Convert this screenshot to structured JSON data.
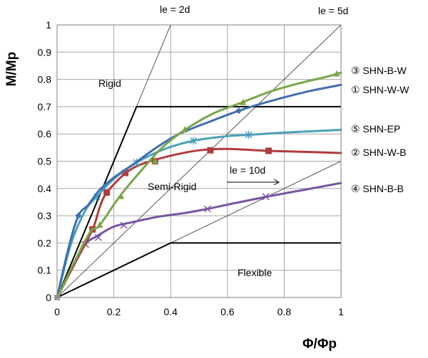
{
  "chart_data": {
    "type": "line",
    "xlabel": "Φ/Φp",
    "ylabel": "M/Mp",
    "xlim": [
      0,
      1
    ],
    "ylim": [
      0,
      1
    ],
    "x_ticks": [
      "0",
      "0.2",
      "0.4",
      "0.6",
      "0.8",
      "1"
    ],
    "y_ticks": [
      "0",
      "0.1",
      "0.2",
      "0.3",
      "0.4",
      "0.5",
      "0.6",
      "0.7",
      "0.8",
      "0.9",
      "1"
    ],
    "grid": true,
    "legend_placement": "right",
    "annotations": {
      "le_2d": "le = 2d",
      "le_5d": "le = 5d",
      "le_10d": "le = 10d",
      "rigid": "Rigid",
      "semi_rigid": "Semi-Rigid",
      "flexible": "Flexible"
    },
    "reference_lines": {
      "le_2d": {
        "x": [
          0,
          0.4
        ],
        "y": [
          0,
          1
        ]
      },
      "le_5d": {
        "x": [
          0,
          1
        ],
        "y": [
          0,
          1
        ]
      },
      "le_10d": {
        "x": [
          0,
          1
        ],
        "y": [
          0,
          0.5
        ]
      },
      "rigid_boundary": {
        "x": [
          0,
          0.28,
          1
        ],
        "y": [
          0,
          0.7,
          0.7
        ]
      },
      "flexible_boundary": {
        "x": [
          0,
          0.4,
          1
        ],
        "y": [
          0,
          0.2,
          0.2
        ]
      }
    },
    "series": [
      {
        "name": "③ SHN-B-W",
        "color": "#77a64a",
        "marker": "triangle",
        "curve": [
          [
            0,
            0
          ],
          [
            0.08,
            0.17
          ],
          [
            0.12,
            0.245
          ],
          [
            0.15,
            0.265
          ],
          [
            0.22,
            0.37
          ],
          [
            0.3,
            0.47
          ],
          [
            0.37,
            0.55
          ],
          [
            0.45,
            0.615
          ],
          [
            0.55,
            0.675
          ],
          [
            0.65,
            0.715
          ],
          [
            0.75,
            0.755
          ],
          [
            0.85,
            0.785
          ],
          [
            0.95,
            0.81
          ],
          [
            1,
            0.825
          ]
        ],
        "markers": [
          [
            0.15,
            0.265
          ],
          [
            0.225,
            0.37
          ],
          [
            0.345,
            0.5
          ],
          [
            0.45,
            0.615
          ],
          [
            0.655,
            0.715
          ],
          [
            0.985,
            0.82
          ]
        ]
      },
      {
        "name": "① SHN-W-W",
        "color": "#3f6fae",
        "marker": "diamond",
        "curve": [
          [
            0,
            0
          ],
          [
            0.04,
            0.18
          ],
          [
            0.075,
            0.3
          ],
          [
            0.11,
            0.34
          ],
          [
            0.15,
            0.395
          ],
          [
            0.2,
            0.44
          ],
          [
            0.27,
            0.49
          ],
          [
            0.35,
            0.55
          ],
          [
            0.43,
            0.6
          ],
          [
            0.55,
            0.65
          ],
          [
            0.64,
            0.685
          ],
          [
            0.75,
            0.72
          ],
          [
            0.88,
            0.755
          ],
          [
            1,
            0.78
          ]
        ],
        "markers": [
          [
            0.075,
            0.3
          ],
          [
            0.64,
            0.685
          ]
        ]
      },
      {
        "name": "⑤ SHN-EP",
        "color": "#4aa0bb",
        "marker": "asterisk",
        "curve": [
          [
            0,
            0
          ],
          [
            0.05,
            0.2
          ],
          [
            0.1,
            0.32
          ],
          [
            0.14,
            0.37
          ],
          [
            0.2,
            0.435
          ],
          [
            0.28,
            0.495
          ],
          [
            0.38,
            0.545
          ],
          [
            0.48,
            0.575
          ],
          [
            0.6,
            0.592
          ],
          [
            0.68,
            0.597
          ],
          [
            0.8,
            0.605
          ],
          [
            0.9,
            0.61
          ],
          [
            1,
            0.615
          ]
        ],
        "markers": [
          [
            0.14,
            0.37
          ],
          [
            0.28,
            0.495
          ],
          [
            0.48,
            0.575
          ],
          [
            0.675,
            0.597
          ]
        ]
      },
      {
        "name": "② SHN-W-B",
        "color": "#b23b3b",
        "marker": "square",
        "curve": [
          [
            0,
            0
          ],
          [
            0.06,
            0.12
          ],
          [
            0.125,
            0.25
          ],
          [
            0.15,
            0.33
          ],
          [
            0.175,
            0.385
          ],
          [
            0.24,
            0.455
          ],
          [
            0.3,
            0.49
          ],
          [
            0.4,
            0.52
          ],
          [
            0.5,
            0.54
          ],
          [
            0.6,
            0.545
          ],
          [
            0.74,
            0.538
          ],
          [
            0.85,
            0.535
          ],
          [
            1,
            0.53
          ]
        ],
        "markers": [
          [
            0.125,
            0.25
          ],
          [
            0.175,
            0.385
          ],
          [
            0.24,
            0.457
          ],
          [
            0.345,
            0.5
          ],
          [
            0.54,
            0.54
          ],
          [
            0.745,
            0.538
          ]
        ]
      },
      {
        "name": "④ SHN-B-B",
        "color": "#7a54a4",
        "marker": "x",
        "curve": [
          [
            0,
            0
          ],
          [
            0.05,
            0.1
          ],
          [
            0.1,
            0.195
          ],
          [
            0.14,
            0.225
          ],
          [
            0.2,
            0.26
          ],
          [
            0.26,
            0.275
          ],
          [
            0.35,
            0.295
          ],
          [
            0.45,
            0.31
          ],
          [
            0.53,
            0.325
          ],
          [
            0.62,
            0.345
          ],
          [
            0.74,
            0.37
          ],
          [
            0.87,
            0.395
          ],
          [
            1,
            0.42
          ]
        ],
        "markers": [
          [
            0.1,
            0.195
          ],
          [
            0.145,
            0.22
          ],
          [
            0.235,
            0.265
          ],
          [
            0.53,
            0.325
          ],
          [
            0.735,
            0.37
          ]
        ]
      }
    ]
  }
}
